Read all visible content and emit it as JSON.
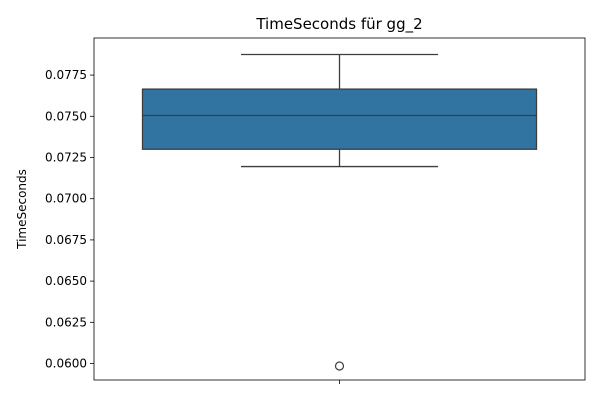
{
  "chart_data": {
    "type": "box",
    "title": "TimeSeconds für gg_2",
    "xlabel": "",
    "ylabel": "TimeSeconds",
    "ylim": [
      0.059,
      0.07975
    ],
    "yticks": [
      0.06,
      0.0625,
      0.065,
      0.0675,
      0.07,
      0.0725,
      0.075,
      0.0775
    ],
    "ytick_labels": [
      "0.0600",
      "0.0625",
      "0.0650",
      "0.0675",
      "0.0700",
      "0.0725",
      "0.0750",
      "0.0775"
    ],
    "grid": false,
    "box": {
      "whisker_low": 0.07195,
      "q1": 0.073,
      "median": 0.07505,
      "q3": 0.07665,
      "whisker_high": 0.07875,
      "outliers": [
        0.05985
      ]
    },
    "colors": {
      "box_fill": "#3274a1",
      "lines": "#3d3d3d",
      "outlier_edge": "#3d3d3d"
    }
  }
}
